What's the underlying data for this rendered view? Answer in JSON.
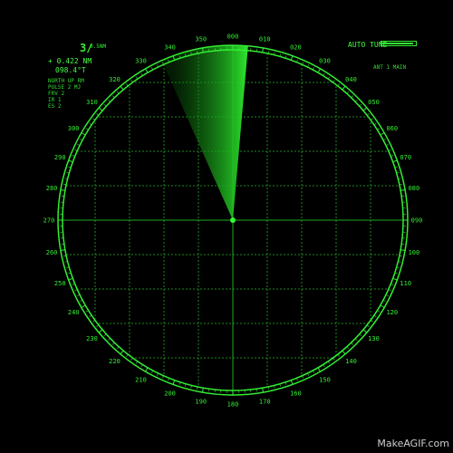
{
  "range": {
    "value": "3/",
    "unit": "0.5NM"
  },
  "cursor": {
    "distance": "+ 0.422 NM",
    "bearing": "098.4°T"
  },
  "info_lines": [
    "NORTH UP RM",
    "PULSE 2 MJ",
    "FRV 2",
    "IR 1",
    "ES 2"
  ],
  "auto_tune": {
    "label": "AUTO TUNE",
    "level": 0.95
  },
  "antenna": "ANT 1  MAIN",
  "bearing_labels": [
    "000",
    "010",
    "020",
    "030",
    "040",
    "050",
    "060",
    "070",
    "080",
    "090",
    "100",
    "110",
    "120",
    "130",
    "140",
    "150",
    "160",
    "170",
    "180",
    "190",
    "200",
    "210",
    "220",
    "230",
    "240",
    "250",
    "260",
    "270",
    "280",
    "290",
    "300",
    "310",
    "320",
    "330",
    "340",
    "350"
  ],
  "sweep": {
    "start_deg": 336,
    "end_deg": 5
  },
  "colors": {
    "primary": "#33ff33",
    "background": "#000000"
  },
  "watermark": "MakeAGIF.com"
}
